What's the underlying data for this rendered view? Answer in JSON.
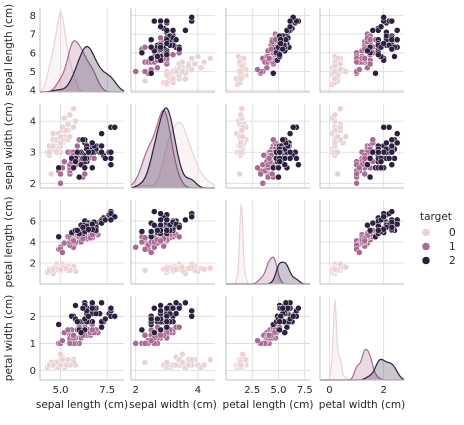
{
  "chart_data": {
    "type": "scatter",
    "subtype": "pairplot",
    "variables": [
      "sepal length (cm)",
      "sepal width (cm)",
      "petal length (cm)",
      "petal width (cm)"
    ],
    "diagonal": "kde",
    "legend": {
      "title": "target",
      "position": "right",
      "entries": [
        "0",
        "1",
        "2"
      ]
    },
    "colors": {
      "0": "#ead3d4",
      "1": "#a96a93",
      "2": "#2c1f3f"
    },
    "axis_ranges": {
      "sepal length (cm)": [
        3.9,
        8.4
      ],
      "sepal width (cm)": [
        1.85,
        4.55
      ],
      "petal length (cm)": [
        0.0,
        8.0
      ],
      "petal width (cm)": [
        -0.35,
        2.75
      ]
    },
    "ticks": {
      "sepal length (cm)": [
        5.0,
        7.5
      ],
      "sepal width (cm)": [
        2,
        3,
        4
      ],
      "petal length (cm)": [
        2.5,
        5.0,
        7.5
      ],
      "petal width (cm)": [
        0,
        1,
        2
      ]
    },
    "ytick_labels": {
      "sepal length (cm)": [
        "4",
        "5",
        "6",
        "7",
        "8"
      ],
      "sepal width (cm)": [
        "2",
        "3",
        "4"
      ],
      "petal length (cm)": [
        "2",
        "4",
        "6"
      ],
      "petal width (cm)": [
        "0",
        "1",
        "2"
      ]
    },
    "xtick_labels": {
      "sepal length (cm)": [
        "5.0",
        "7.5"
      ],
      "sepal width (cm)": [
        "2",
        "4"
      ],
      "petal length (cm)": [
        "2.5",
        "5.0",
        "7.5"
      ],
      "petal width (cm)": [
        "0",
        "2"
      ]
    },
    "ytick_values": {
      "sepal length (cm)": [
        4,
        5,
        6,
        7,
        8
      ],
      "sepal width (cm)": [
        2,
        3,
        4
      ],
      "petal length (cm)": [
        2,
        4,
        6
      ],
      "petal width (cm)": [
        0,
        1,
        2
      ]
    },
    "xtick_values": {
      "sepal length (cm)": [
        5.0,
        7.5
      ],
      "sepal width (cm)": [
        2,
        4
      ],
      "petal length (cm)": [
        2.5,
        5.0,
        7.5
      ],
      "petal width (cm)": [
        0,
        2
      ]
    },
    "grid": true,
    "series": [
      {
        "name": "0",
        "points": [
          [
            5.1,
            3.5,
            1.4,
            0.2
          ],
          [
            4.9,
            3.0,
            1.4,
            0.2
          ],
          [
            4.7,
            3.2,
            1.3,
            0.2
          ],
          [
            4.6,
            3.1,
            1.5,
            0.2
          ],
          [
            5.0,
            3.6,
            1.4,
            0.2
          ],
          [
            5.4,
            3.9,
            1.7,
            0.4
          ],
          [
            4.6,
            3.4,
            1.4,
            0.3
          ],
          [
            5.0,
            3.4,
            1.5,
            0.2
          ],
          [
            4.4,
            2.9,
            1.4,
            0.2
          ],
          [
            4.9,
            3.1,
            1.5,
            0.1
          ],
          [
            5.4,
            3.7,
            1.5,
            0.2
          ],
          [
            4.8,
            3.4,
            1.6,
            0.2
          ],
          [
            4.8,
            3.0,
            1.4,
            0.1
          ],
          [
            4.3,
            3.0,
            1.1,
            0.1
          ],
          [
            5.8,
            4.0,
            1.2,
            0.2
          ],
          [
            5.7,
            4.4,
            1.5,
            0.4
          ],
          [
            5.4,
            3.9,
            1.3,
            0.4
          ],
          [
            5.1,
            3.5,
            1.4,
            0.3
          ],
          [
            5.7,
            3.8,
            1.7,
            0.3
          ],
          [
            5.1,
            3.8,
            1.5,
            0.3
          ],
          [
            5.4,
            3.4,
            1.7,
            0.2
          ],
          [
            5.1,
            3.7,
            1.5,
            0.4
          ],
          [
            4.6,
            3.6,
            1.0,
            0.2
          ],
          [
            5.1,
            3.3,
            1.7,
            0.5
          ],
          [
            4.8,
            3.4,
            1.9,
            0.2
          ],
          [
            5.0,
            3.0,
            1.6,
            0.2
          ],
          [
            5.0,
            3.4,
            1.6,
            0.4
          ],
          [
            5.2,
            3.5,
            1.5,
            0.2
          ],
          [
            5.2,
            3.4,
            1.4,
            0.2
          ],
          [
            4.7,
            3.2,
            1.6,
            0.2
          ],
          [
            4.8,
            3.1,
            1.6,
            0.2
          ],
          [
            5.4,
            3.4,
            1.5,
            0.4
          ],
          [
            5.2,
            4.1,
            1.5,
            0.1
          ],
          [
            5.5,
            4.2,
            1.4,
            0.2
          ],
          [
            4.9,
            3.1,
            1.5,
            0.2
          ],
          [
            5.0,
            3.2,
            1.2,
            0.2
          ],
          [
            5.5,
            3.5,
            1.3,
            0.2
          ],
          [
            4.9,
            3.6,
            1.4,
            0.1
          ],
          [
            4.4,
            3.0,
            1.3,
            0.2
          ],
          [
            5.1,
            3.4,
            1.5,
            0.2
          ],
          [
            5.0,
            3.5,
            1.3,
            0.3
          ],
          [
            4.5,
            2.3,
            1.3,
            0.3
          ],
          [
            4.4,
            3.2,
            1.3,
            0.2
          ],
          [
            5.0,
            3.5,
            1.6,
            0.6
          ],
          [
            5.1,
            3.8,
            1.9,
            0.4
          ],
          [
            4.8,
            3.0,
            1.4,
            0.3
          ],
          [
            5.1,
            3.8,
            1.6,
            0.2
          ],
          [
            4.6,
            3.2,
            1.4,
            0.2
          ],
          [
            5.3,
            3.7,
            1.5,
            0.2
          ],
          [
            5.0,
            3.3,
            1.4,
            0.2
          ]
        ]
      },
      {
        "name": "1",
        "points": [
          [
            7.0,
            3.2,
            4.7,
            1.4
          ],
          [
            6.4,
            3.2,
            4.5,
            1.5
          ],
          [
            6.9,
            3.1,
            4.9,
            1.5
          ],
          [
            5.5,
            2.3,
            4.0,
            1.3
          ],
          [
            6.5,
            2.8,
            4.6,
            1.5
          ],
          [
            5.7,
            2.8,
            4.5,
            1.3
          ],
          [
            6.3,
            3.3,
            4.7,
            1.6
          ],
          [
            4.9,
            2.4,
            3.3,
            1.0
          ],
          [
            6.6,
            2.9,
            4.6,
            1.3
          ],
          [
            5.2,
            2.7,
            3.9,
            1.4
          ],
          [
            5.0,
            2.0,
            3.5,
            1.0
          ],
          [
            5.9,
            3.0,
            4.2,
            1.5
          ],
          [
            6.0,
            2.2,
            4.0,
            1.0
          ],
          [
            6.1,
            2.9,
            4.7,
            1.4
          ],
          [
            5.6,
            2.9,
            3.6,
            1.3
          ],
          [
            6.7,
            3.1,
            4.4,
            1.4
          ],
          [
            5.6,
            3.0,
            4.5,
            1.5
          ],
          [
            5.8,
            2.7,
            4.1,
            1.0
          ],
          [
            6.2,
            2.2,
            4.5,
            1.5
          ],
          [
            5.6,
            2.5,
            3.9,
            1.1
          ],
          [
            5.9,
            3.2,
            4.8,
            1.8
          ],
          [
            6.1,
            2.8,
            4.0,
            1.3
          ],
          [
            6.3,
            2.5,
            4.9,
            1.5
          ],
          [
            6.1,
            2.8,
            4.7,
            1.2
          ],
          [
            6.4,
            2.9,
            4.3,
            1.3
          ],
          [
            6.6,
            3.0,
            4.4,
            1.4
          ],
          [
            6.8,
            2.8,
            4.8,
            1.4
          ],
          [
            6.7,
            3.0,
            5.0,
            1.7
          ],
          [
            6.0,
            2.9,
            4.5,
            1.5
          ],
          [
            5.7,
            2.6,
            3.5,
            1.0
          ],
          [
            5.5,
            2.4,
            3.8,
            1.1
          ],
          [
            5.5,
            2.4,
            3.7,
            1.0
          ],
          [
            5.8,
            2.7,
            3.9,
            1.2
          ],
          [
            6.0,
            2.7,
            5.1,
            1.6
          ],
          [
            5.4,
            3.0,
            4.5,
            1.5
          ],
          [
            6.0,
            3.4,
            4.5,
            1.6
          ],
          [
            6.7,
            3.1,
            4.7,
            1.5
          ],
          [
            6.3,
            2.3,
            4.4,
            1.3
          ],
          [
            5.6,
            3.0,
            4.1,
            1.3
          ],
          [
            5.5,
            2.5,
            4.0,
            1.3
          ],
          [
            5.5,
            2.6,
            4.4,
            1.2
          ],
          [
            6.1,
            3.0,
            4.6,
            1.4
          ],
          [
            5.8,
            2.6,
            4.0,
            1.2
          ],
          [
            5.0,
            2.3,
            3.3,
            1.0
          ],
          [
            5.6,
            2.7,
            4.2,
            1.3
          ],
          [
            5.7,
            3.0,
            4.2,
            1.2
          ],
          [
            5.7,
            2.9,
            4.2,
            1.3
          ],
          [
            6.2,
            2.9,
            4.3,
            1.3
          ],
          [
            5.1,
            2.5,
            3.0,
            1.1
          ],
          [
            5.7,
            2.8,
            4.1,
            1.3
          ]
        ]
      },
      {
        "name": "2",
        "points": [
          [
            6.3,
            3.3,
            6.0,
            2.5
          ],
          [
            5.8,
            2.7,
            5.1,
            1.9
          ],
          [
            7.1,
            3.0,
            5.9,
            2.1
          ],
          [
            6.3,
            2.9,
            5.6,
            1.8
          ],
          [
            6.5,
            3.0,
            5.8,
            2.2
          ],
          [
            7.6,
            3.0,
            6.6,
            2.1
          ],
          [
            4.9,
            2.5,
            4.5,
            1.7
          ],
          [
            7.3,
            2.9,
            6.3,
            1.8
          ],
          [
            6.7,
            2.5,
            5.8,
            1.8
          ],
          [
            7.2,
            3.6,
            6.1,
            2.5
          ],
          [
            6.5,
            3.2,
            5.1,
            2.0
          ],
          [
            6.4,
            2.7,
            5.3,
            1.9
          ],
          [
            6.8,
            3.0,
            5.5,
            2.1
          ],
          [
            5.7,
            2.5,
            5.0,
            2.0
          ],
          [
            5.8,
            2.8,
            5.1,
            2.4
          ],
          [
            6.4,
            3.2,
            5.3,
            2.3
          ],
          [
            6.5,
            3.0,
            5.5,
            1.8
          ],
          [
            7.7,
            3.8,
            6.7,
            2.2
          ],
          [
            7.7,
            2.6,
            6.9,
            2.3
          ],
          [
            6.0,
            2.2,
            5.0,
            1.5
          ],
          [
            6.9,
            3.2,
            5.7,
            2.3
          ],
          [
            5.6,
            2.8,
            4.9,
            2.0
          ],
          [
            7.7,
            2.8,
            6.7,
            2.0
          ],
          [
            6.3,
            2.7,
            4.9,
            1.8
          ],
          [
            6.7,
            3.3,
            5.7,
            2.1
          ],
          [
            7.2,
            3.2,
            6.0,
            1.8
          ],
          [
            6.2,
            2.8,
            4.8,
            1.8
          ],
          [
            6.1,
            3.0,
            4.9,
            1.8
          ],
          [
            6.4,
            2.8,
            5.6,
            2.1
          ],
          [
            7.2,
            3.0,
            5.8,
            1.6
          ],
          [
            7.4,
            2.8,
            6.1,
            1.9
          ],
          [
            7.9,
            3.8,
            6.4,
            2.0
          ],
          [
            6.4,
            2.8,
            5.6,
            2.2
          ],
          [
            6.3,
            2.8,
            5.1,
            1.5
          ],
          [
            6.1,
            2.6,
            5.6,
            1.4
          ],
          [
            7.7,
            3.0,
            6.1,
            2.3
          ],
          [
            6.3,
            3.4,
            5.6,
            2.4
          ],
          [
            6.4,
            3.1,
            5.5,
            1.8
          ],
          [
            6.0,
            3.0,
            4.8,
            1.8
          ],
          [
            6.9,
            3.1,
            5.4,
            2.1
          ],
          [
            6.7,
            3.1,
            5.6,
            2.4
          ],
          [
            6.9,
            3.1,
            5.1,
            2.3
          ],
          [
            5.8,
            2.7,
            5.1,
            1.9
          ],
          [
            6.8,
            3.2,
            5.9,
            2.3
          ],
          [
            6.7,
            3.3,
            5.7,
            2.5
          ],
          [
            6.7,
            3.0,
            5.2,
            2.3
          ],
          [
            6.3,
            2.5,
            5.0,
            1.9
          ],
          [
            6.5,
            3.0,
            5.2,
            2.0
          ],
          [
            6.2,
            3.4,
            5.4,
            2.3
          ],
          [
            5.9,
            3.0,
            5.1,
            1.8
          ]
        ]
      }
    ]
  }
}
